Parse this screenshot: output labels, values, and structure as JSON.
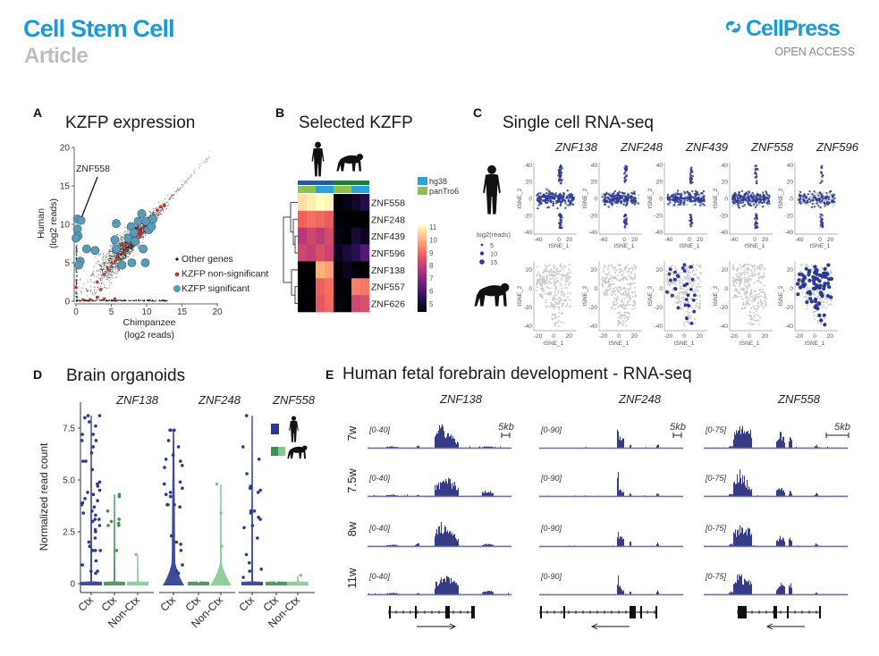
{
  "header": {
    "journal": "Cell Stem Cell",
    "article_type": "Article",
    "publisher": "CellPress",
    "access": "OPEN ACCESS"
  },
  "colors": {
    "brand": "#1a9bd7",
    "human": "#2b3990",
    "chimp_ctx": "#3f8f52",
    "chimp_nonctx": "#84c991",
    "significant": "#5b9bb6",
    "nonsignificant": "#c9352c",
    "hg38": "#29a3d8",
    "panTro6": "#8cc152",
    "species_human": "#2a56a6",
    "species_chimp": "#1f7a3c",
    "track": "#363b86"
  },
  "panels": {
    "A": {
      "letter": "A",
      "title": "KZFP expression"
    },
    "B": {
      "letter": "B",
      "title": "Selected KZFP"
    },
    "C": {
      "letter": "C",
      "title": "Single cell RNA-seq"
    },
    "D": {
      "letter": "D",
      "title": "Brain organoids"
    },
    "E": {
      "letter": "E",
      "title": "Human fetal forebrain development - RNA-seq"
    }
  },
  "icons": {
    "human": "human-silhouette-icon",
    "chimp": "chimpanzee-silhouette-icon",
    "logo": "cellpress-logo-icon"
  },
  "chart_data": [
    {
      "type": "scatter",
      "title": "KZFP expression",
      "xlabel": [
        "Chimpanzee",
        "(log2 reads)"
      ],
      "ylabel": [
        "Human",
        "(log2 reads)"
      ],
      "xlim": [
        0,
        20
      ],
      "ylim": [
        0,
        20
      ],
      "xticks": [
        0,
        5,
        10,
        15,
        20
      ],
      "yticks": [
        0,
        5,
        10,
        15,
        20
      ],
      "legend": {
        "position": "bottom-right",
        "entries": [
          "Other genes",
          "KZFP non-significant",
          "KZFP significant"
        ]
      },
      "annotation": "ZNF558",
      "annotation_point": [
        0.7,
        10.5
      ],
      "significant": [
        [
          0.2,
          10.7
        ],
        [
          0.2,
          9.4
        ],
        [
          0.3,
          8.5
        ],
        [
          0,
          8.2
        ],
        [
          0.7,
          10.5
        ],
        [
          1.5,
          6.8
        ],
        [
          2.7,
          6.6
        ],
        [
          0.6,
          5.2
        ],
        [
          0.4,
          4.7
        ],
        [
          5.7,
          10.1
        ],
        [
          5.5,
          8
        ],
        [
          5.7,
          6.8
        ],
        [
          6.5,
          4.7
        ],
        [
          7.8,
          9.7
        ],
        [
          8.2,
          8.9
        ],
        [
          8.8,
          10.4
        ],
        [
          9.3,
          11.4
        ],
        [
          9.9,
          10.4
        ],
        [
          10.3,
          9.3
        ],
        [
          10.7,
          9.7
        ],
        [
          9.5,
          6.8
        ],
        [
          7.9,
          5
        ],
        [
          9.8,
          5
        ],
        [
          7.4,
          8.2
        ],
        [
          8.4,
          7.8
        ],
        [
          10.9,
          10.7
        ]
      ],
      "nonsignificant": [
        [
          3,
          2.5
        ],
        [
          4,
          3.5
        ],
        [
          5,
          5
        ],
        [
          5.5,
          5.2
        ],
        [
          6,
          6.2
        ],
        [
          6.5,
          6.8
        ],
        [
          7,
          7.3
        ],
        [
          7.5,
          7.6
        ],
        [
          8,
          8.2
        ],
        [
          8.5,
          8.6
        ],
        [
          9,
          9
        ],
        [
          9.5,
          9.6
        ],
        [
          10,
          10.2
        ],
        [
          10.5,
          10.5
        ],
        [
          11,
          11.2
        ],
        [
          11.5,
          11.8
        ],
        [
          12,
          12.3
        ],
        [
          7,
          6.5
        ],
        [
          8,
          7.6
        ],
        [
          9,
          8.5
        ],
        [
          6,
          5.5
        ],
        [
          7.8,
          8.8
        ],
        [
          8.8,
          9.8
        ],
        [
          10,
          9.5
        ],
        [
          11,
          10.6
        ],
        [
          3,
          0.5
        ],
        [
          5.5,
          0.3
        ],
        [
          0,
          1.8
        ],
        [
          1,
          0.2
        ],
        [
          6.5,
          7.5
        ],
        [
          8.3,
          9.2
        ],
        [
          9.3,
          8.8
        ],
        [
          4.5,
          4.2
        ],
        [
          12.5,
          12.4
        ],
        [
          7.2,
          8
        ],
        [
          3.5,
          1.5
        ],
        [
          2,
          0.2
        ],
        [
          4,
          0.3
        ]
      ]
    },
    {
      "type": "heatmap",
      "title": "Selected KZFP",
      "rows": [
        "ZNF558",
        "ZNF248",
        "ZNF439",
        "ZNF596",
        "ZNF138",
        "ZNF557",
        "ZNF626"
      ],
      "column_species": [
        "human",
        "human",
        "human",
        "human",
        "chimpanzee",
        "chimpanzee",
        "chimpanzee",
        "chimpanzee"
      ],
      "column_genome": [
        "panTro6",
        "panTro6",
        "hg38",
        "hg38",
        "panTro6",
        "panTro6",
        "hg38",
        "hg38"
      ],
      "legend": [
        "hg38",
        "panTro6"
      ],
      "colorbar_ticks": [
        11,
        10,
        9,
        8,
        7,
        6,
        5
      ],
      "values": [
        [
          10.6,
          10.8,
          11.0,
          10.9,
          5.0,
          5.2,
          5.4,
          5.8
        ],
        [
          9.0,
          9.2,
          9.1,
          8.9,
          4.8,
          4.7,
          4.8,
          4.7
        ],
        [
          8.0,
          8.4,
          8.1,
          8.5,
          5.2,
          5.0,
          5.6,
          5.3
        ],
        [
          8.4,
          8.2,
          8.6,
          8.3,
          5.3,
          5.6,
          5.9,
          6.6
        ],
        [
          4.6,
          4.8,
          10.0,
          9.8,
          5.0,
          5.3,
          4.9,
          5.0
        ],
        [
          4.7,
          4.8,
          9.0,
          9.2,
          4.8,
          4.6,
          9.4,
          9.3
        ],
        [
          5.0,
          4.9,
          8.8,
          9.1,
          5.1,
          5.0,
          8.4,
          8.6
        ]
      ],
      "dendrogram": "clusters {ZNF558,{ZNF248,{ZNF439,ZNF596}}} and {ZNF138,{ZNF557,ZNF626}}"
    },
    {
      "type": "scatter",
      "title": "Single cell RNA-seq",
      "genes": [
        "ZNF138",
        "ZNF248",
        "ZNF439",
        "ZNF558",
        "ZNF596"
      ],
      "rows": [
        "human",
        "chimpanzee"
      ],
      "xlabel": "tSNE_1",
      "ylabel": "tSNE_2",
      "human_xticks": [
        "-40",
        "0",
        "20"
      ],
      "human_yticks": [
        "40",
        "20",
        "0",
        "-20",
        "-40"
      ],
      "chimp_xticks": [
        "-20",
        "0",
        "20"
      ],
      "chimp_yticks": [
        "20",
        "0",
        "-20",
        "-40"
      ],
      "size_legend": {
        "title": "log2(reads)",
        "values": [
          "5",
          "10",
          "15"
        ]
      },
      "human_expressing_fraction": [
        0.8,
        0.75,
        0.7,
        0.7,
        0.45
      ],
      "chimp_expressing": [
        false,
        false,
        true,
        false,
        true
      ]
    },
    {
      "type": "strip",
      "title": "Brain organoids",
      "ylabel": "Normalized read count",
      "ylim": [
        0,
        8.3
      ],
      "yticks": [
        "0",
        "2.5",
        "5.0",
        "7.5"
      ],
      "groups": [
        {
          "gene": "ZNF138",
          "categories": [
            {
              "label": "Ctx",
              "species": "human",
              "max": 8.1,
              "values": [
                8.1,
                8.1,
                8,
                7.8,
                7.6,
                7.2,
                7.2,
                6.9,
                6.9,
                6.6,
                6.3,
                5.9,
                5.9,
                5.5,
                4.9,
                4.8,
                4.7,
                4.5,
                4.4,
                4.3,
                4.1,
                4,
                3.9,
                3.8,
                3.7,
                3.5,
                3.4,
                3.3,
                3.1,
                3.1,
                3,
                2.8,
                2.6,
                2.5,
                2.2,
                2,
                1.8,
                1.6,
                1.6,
                1.6,
                1.1,
                0.9,
                0.6,
                0.6,
                0.5
              ]
            },
            {
              "label": "Ctx",
              "species": "chimp_ctx",
              "max": 4.3,
              "values": [
                4.3,
                4.2,
                3.5,
                3.1,
                3.0,
                2.9,
                2.8,
                2.8,
                1.6
              ]
            },
            {
              "label": "Non-Ctx",
              "species": "chimp_nonctx",
              "max": 1.4,
              "values": [
                1.4
              ]
            }
          ]
        },
        {
          "gene": "ZNF248",
          "categories": [
            {
              "label": "Ctx",
              "species": "human",
              "max": 7.4,
              "values": [
                7.4,
                7.4,
                7.4,
                6.9,
                6.6,
                6.2,
                6,
                5.9,
                5.7,
                5.6,
                4.9,
                4.8,
                4.6,
                4.4,
                4.3,
                4.2,
                3.8,
                3.8,
                3.8,
                3.7,
                2.3,
                2,
                1.9,
                1.6,
                0.9,
                0.6,
                0.5
              ]
            },
            {
              "label": "Ctx",
              "species": "chimp_ctx",
              "max": 0,
              "values": []
            },
            {
              "label": "Non-Ctx",
              "species": "chimp_nonctx",
              "max": 4.8,
              "values": [
                4.8,
                3.4,
                1.8
              ]
            }
          ]
        },
        {
          "gene": "ZNF558",
          "categories": [
            {
              "label": "Ctx",
              "species": "human",
              "max": 8.1,
              "values": [
                8.1,
                6.6,
                6,
                5.3,
                4.7,
                4.6,
                4.5,
                4.4,
                3.5,
                3.5,
                3.4,
                3.2,
                3.1,
                2.8,
                2.7,
                2.2,
                1.4,
                1,
                0.7,
                0.6,
                0.3
              ]
            },
            {
              "label": "Ctx",
              "species": "chimp_ctx",
              "max": 0,
              "values": []
            },
            {
              "label": "Non-Ctx",
              "species": "chimp_nonctx",
              "max": 0.4,
              "values": [
                0.4
              ]
            }
          ]
        }
      ],
      "legend": [
        "human",
        "chimpanzee"
      ]
    },
    {
      "type": "coverage",
      "title": "Human fetal forebrain development - RNA-seq",
      "stages": [
        "7w",
        "7.5w",
        "8w",
        "11w"
      ],
      "scale_bar": "5kb",
      "genes": [
        {
          "name": "ZNF138",
          "range": "[0-40]",
          "strand": "+",
          "peaks": [
            [
              0.51,
              0.05,
              [
                32,
                20,
                30,
                22
              ]
            ],
            [
              0.555,
              0.05,
              [
                20,
                25,
                22,
                25
              ]
            ],
            [
              0.6,
              0.03,
              [
                12,
                18,
                15,
                20
              ]
            ],
            [
              0.83,
              0.04,
              [
                2,
                8,
                3,
                6
              ]
            ],
            [
              0.35,
              0.01,
              [
                4,
                3,
                4,
                2
              ]
            ],
            [
              0.17,
              0.04,
              [
                2,
                2,
                2,
                2
              ]
            ]
          ]
        },
        {
          "name": "ZNF248",
          "range": "[0-90]",
          "strand": "-",
          "peaks": [
            [
              0.545,
              0.006,
              [
                72,
                88,
                60,
                70
              ]
            ],
            [
              0.56,
              0.025,
              [
                45,
                20,
                35,
                25
              ]
            ],
            [
              0.63,
              0.008,
              [
                15,
                10,
                15,
                12
              ]
            ],
            [
              0.82,
              0.008,
              [
                15,
                10,
                12,
                15
              ]
            ]
          ]
        },
        {
          "name": "ZNF558",
          "range": "[0-75]",
          "strand": "-",
          "peaks": [
            [
              0.25,
              0.05,
              [
                62,
                60,
                55,
                52
              ]
            ],
            [
              0.31,
              0.02,
              [
                55,
                35,
                50,
                45
              ]
            ],
            [
              0.53,
              0.03,
              [
                40,
                22,
                25,
                30
              ]
            ],
            [
              0.6,
              0.01,
              [
                35,
                15,
                28,
                35
              ]
            ],
            [
              0.78,
              0.01,
              [
                8,
                8,
                8,
                4
              ]
            ],
            [
              0.19,
              0.02,
              [
                5,
                6,
                6,
                8
              ]
            ]
          ]
        }
      ]
    }
  ]
}
